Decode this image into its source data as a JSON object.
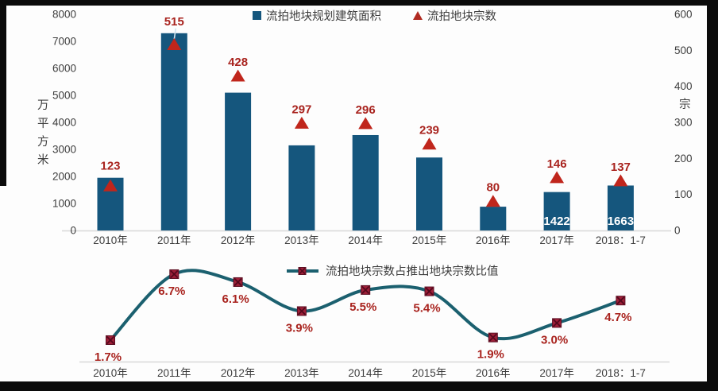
{
  "colors": {
    "bar": "#15567d",
    "triangle": "#c0261c",
    "label_red": "#a9241f",
    "line": "#1b606f",
    "marker_fill": "#9e1f38",
    "marker_edge": "#5c0e22",
    "axis_text": "#3d3d3d",
    "axis_line": "#d8d8d8",
    "bar_value_text": "#ffffff",
    "leader_line": "#cfe3ee",
    "frame": "#0b0b0b"
  },
  "chart_data": [
    {
      "type": "bar",
      "title": "",
      "categories": [
        "2010年",
        "2011年",
        "2012年",
        "2013年",
        "2014年",
        "2015年",
        "2016年",
        "2017年",
        "2018：1-7"
      ],
      "series": [
        {
          "name": "流拍地块规划建筑面积",
          "type": "bar",
          "axis": "left",
          "values": [
            1950,
            7300,
            5100,
            3150,
            3530,
            2700,
            880,
            1422,
            1663
          ],
          "bar_labels": [
            null,
            null,
            null,
            null,
            null,
            null,
            null,
            "1422",
            "1663"
          ]
        },
        {
          "name": "流拍地块宗数",
          "type": "scatter",
          "marker": "triangle",
          "axis": "right",
          "values": [
            123,
            515,
            428,
            297,
            296,
            239,
            80,
            146,
            137
          ]
        }
      ],
      "left_axis": {
        "label": "万平方米",
        "ticks": [
          0,
          1000,
          2000,
          3000,
          4000,
          5000,
          6000,
          7000,
          8000
        ],
        "min": 0,
        "max": 8000
      },
      "right_axis": {
        "label": "宗",
        "ticks": [
          0,
          100,
          200,
          300,
          400,
          500,
          600
        ],
        "min": 0,
        "max": 600
      },
      "grid": false,
      "legend_position": "top"
    },
    {
      "type": "line",
      "title": "",
      "categories": [
        "2010年",
        "2011年",
        "2012年",
        "2013年",
        "2014年",
        "2015年",
        "2016年",
        "2017年",
        "2018：1-7"
      ],
      "series": [
        {
          "name": "流拍地块宗数占推出地块宗数比值",
          "values": [
            1.7,
            6.7,
            6.1,
            3.9,
            5.5,
            5.4,
            1.9,
            3.0,
            4.7
          ],
          "labels": [
            "1.7%",
            "6.7%",
            "6.1%",
            "3.9%",
            "5.5%",
            "5.4%",
            "1.9%",
            "3.0%",
            "4.7%"
          ]
        }
      ],
      "grid": false,
      "legend_position": "top-right",
      "smooth": true
    }
  ]
}
